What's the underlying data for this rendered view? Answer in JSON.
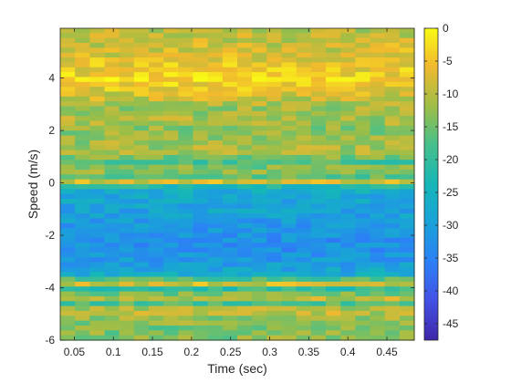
{
  "chart_data": {
    "type": "heatmap",
    "title": "",
    "xlabel": "Time (sec)",
    "ylabel": "Speed (m/s)",
    "xlim": [
      0.032,
      0.485
    ],
    "ylim": [
      -6,
      5.9
    ],
    "xticks": [
      0.05,
      0.1,
      0.15,
      0.2,
      0.25,
      0.3,
      0.35,
      0.4,
      0.45
    ],
    "xtick_labels": [
      "0.05",
      "0.1",
      "0.15",
      "0.2",
      "0.25",
      "0.3",
      "0.35",
      "0.4",
      "0.45"
    ],
    "yticks": [
      -6,
      -4,
      -2,
      0,
      2,
      4
    ],
    "ytick_labels": [
      "-6",
      "-4",
      "-2",
      "0",
      "2",
      "4"
    ],
    "colorbar": {
      "range": [
        -47.5,
        0
      ],
      "ticks": [
        0,
        -5,
        -10,
        -15,
        -20,
        -25,
        -30,
        -35,
        -40,
        -45
      ],
      "tick_labels": [
        "0",
        "-5",
        "-10",
        "-15",
        "-20",
        "-25",
        "-30",
        "-35",
        "-40",
        "-45"
      ],
      "colormap": "parula"
    },
    "grid": false,
    "time_bins": 24,
    "speed_bins": 64,
    "speed_profile_db": [
      {
        "speed": 5.9,
        "value": -11
      },
      {
        "speed": 5.5,
        "value": -9
      },
      {
        "speed": 5.0,
        "value": -8
      },
      {
        "speed": 4.6,
        "value": -6
      },
      {
        "speed": 4.2,
        "value": -5
      },
      {
        "speed": 3.9,
        "value": -3
      },
      {
        "speed": 3.6,
        "value": -6
      },
      {
        "speed": 3.2,
        "value": -9
      },
      {
        "speed": 2.8,
        "value": -12
      },
      {
        "speed": 2.4,
        "value": -11
      },
      {
        "speed": 2.0,
        "value": -13
      },
      {
        "speed": 1.6,
        "value": -12
      },
      {
        "speed": 1.2,
        "value": -11
      },
      {
        "speed": 0.9,
        "value": -15
      },
      {
        "speed": 0.7,
        "value": -21
      },
      {
        "speed": 0.5,
        "value": -7
      },
      {
        "speed": 0.3,
        "value": -20
      },
      {
        "speed": 0.05,
        "value": -7
      },
      {
        "speed": -0.2,
        "value": -26
      },
      {
        "speed": -0.5,
        "value": -28
      },
      {
        "speed": -1.0,
        "value": -29
      },
      {
        "speed": -1.5,
        "value": -31
      },
      {
        "speed": -2.0,
        "value": -32
      },
      {
        "speed": -2.5,
        "value": -33
      },
      {
        "speed": -3.0,
        "value": -31
      },
      {
        "speed": -3.5,
        "value": -27
      },
      {
        "speed": -3.85,
        "value": -7
      },
      {
        "speed": -4.1,
        "value": -24
      },
      {
        "speed": -4.35,
        "value": -7
      },
      {
        "speed": -4.6,
        "value": -18
      },
      {
        "speed": -4.85,
        "value": -8
      },
      {
        "speed": -5.1,
        "value": -12
      },
      {
        "speed": -5.5,
        "value": -14
      },
      {
        "speed": -6.0,
        "value": -13
      }
    ],
    "note_values": "cell values in dB follow the per-speed profile with random per-cell variation of about ±4 dB"
  }
}
